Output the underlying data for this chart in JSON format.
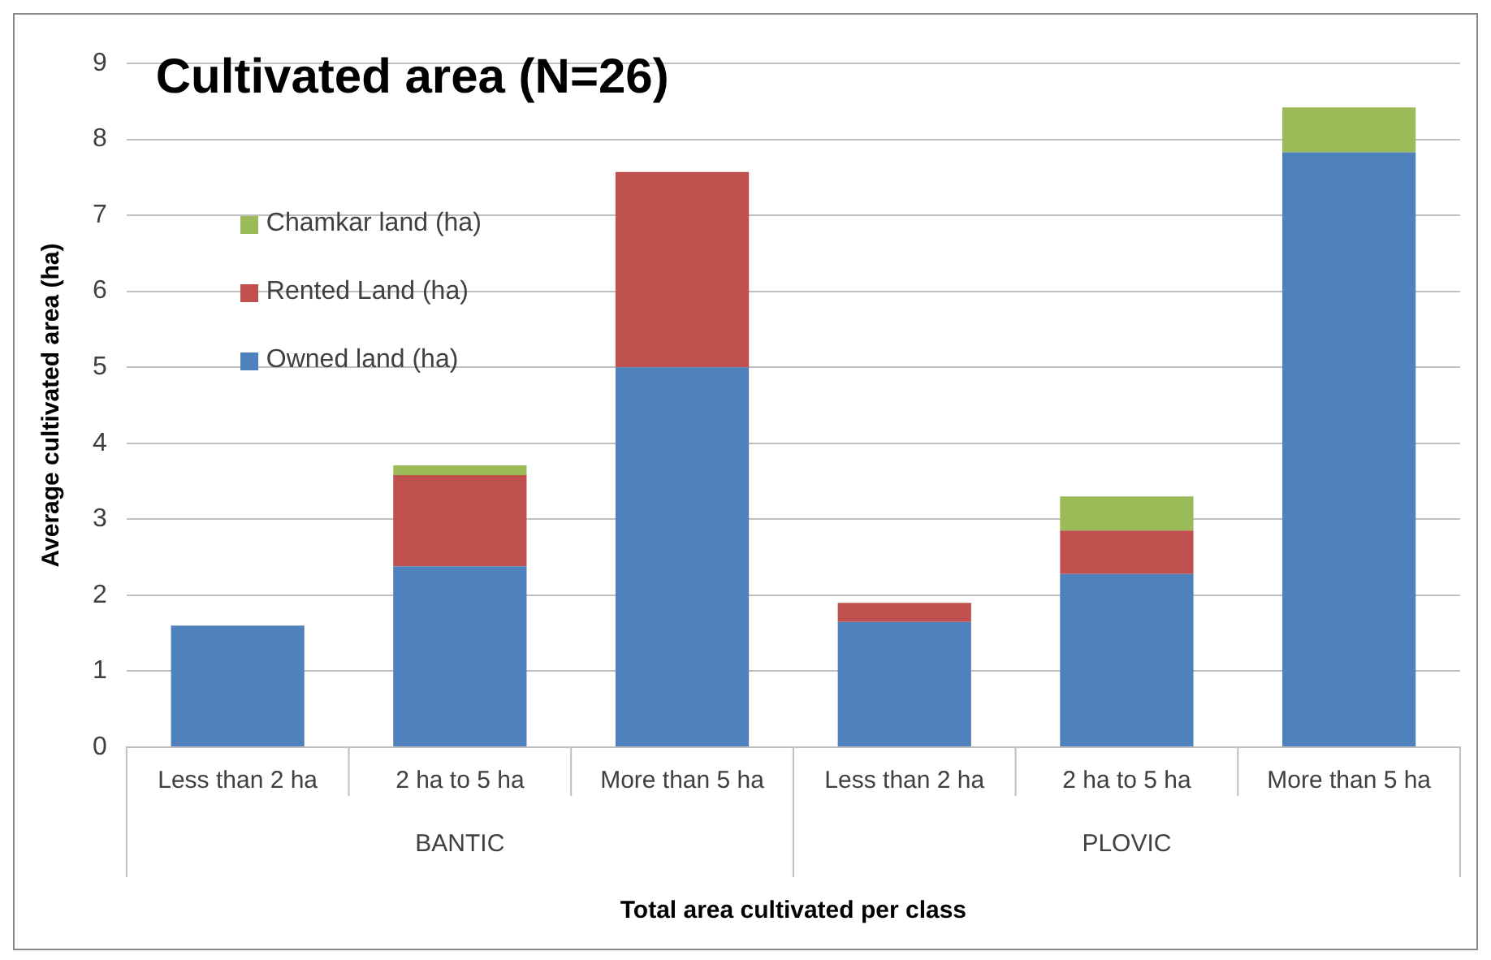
{
  "chart_data": {
    "type": "bar",
    "title": "Cultivated area (N=26)",
    "xlabel": "Total area cultivated per class",
    "ylabel": "Average cultivated area (ha)",
    "categories": [
      "Less than 2 ha",
      "2 ha to 5 ha",
      "More than 5 ha",
      "Less than 2 ha",
      "2 ha to 5 ha",
      "More than 5 ha"
    ],
    "annotations": [
      "BANTIC",
      "PLOVIC"
    ],
    "stacked": true,
    "ylim": [
      0,
      9
    ],
    "yticks": [
      0,
      1,
      2,
      3,
      4,
      5,
      6,
      7,
      8,
      9
    ],
    "grid": "y",
    "legend": "top left",
    "series": [
      {
        "name": "Owned land (ha)",
        "color": "#4f81bd",
        "values": [
          1.6,
          2.38,
          5.0,
          1.65,
          2.28,
          7.83
        ]
      },
      {
        "name": "Rented Land (ha)",
        "color": "#c0504d",
        "values": [
          null,
          1.2,
          2.57,
          0.25,
          0.57,
          null
        ]
      },
      {
        "name": "Chamkar land (ha)",
        "color": "#9bbb59",
        "values": [
          null,
          0.13,
          null,
          null,
          0.45,
          0.59
        ]
      }
    ]
  }
}
